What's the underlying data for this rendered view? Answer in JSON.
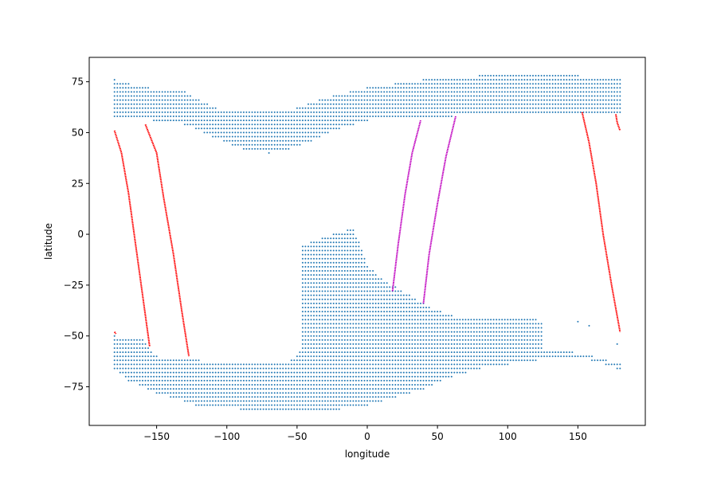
{
  "chart_data": {
    "type": "scatter",
    "title": "",
    "xlabel": "longitude",
    "ylabel": "latitude",
    "xlim": [
      -198,
      198
    ],
    "ylim": [
      -94,
      87
    ],
    "xticks": [
      -150,
      -100,
      -50,
      0,
      50,
      100,
      150
    ],
    "yticks": [
      -75,
      -50,
      -25,
      0,
      25,
      50,
      75
    ],
    "grid": false,
    "legend": "none",
    "colors": {
      "grid_points": "#1f77b4",
      "track_red": "#ff0000",
      "track_magenta": "#bf00bf"
    },
    "grid_regions": [
      {
        "description_value": "north",
        "lon_range": [
          -180,
          180
        ],
        "lat_spacing": 2,
        "lon_spacing": 2,
        "top": [
          [
            -180,
            76
          ],
          [
            -170,
            74
          ],
          [
            -155,
            72
          ],
          [
            -130,
            70
          ],
          [
            -120,
            66
          ],
          [
            -105,
            61
          ],
          [
            -90,
            60
          ],
          [
            -50,
            62
          ],
          [
            -35,
            66
          ],
          [
            -20,
            69
          ],
          [
            -5,
            71
          ],
          [
            0,
            72
          ],
          [
            20,
            74
          ],
          [
            40,
            76
          ],
          [
            80,
            78
          ],
          [
            150,
            78
          ],
          [
            155,
            76
          ],
          [
            180,
            76
          ]
        ],
        "bottom": [
          [
            -180,
            57
          ],
          [
            -155,
            57
          ],
          [
            -150,
            55
          ],
          [
            -130,
            54
          ],
          [
            -120,
            51
          ],
          [
            -100,
            45
          ],
          [
            -85,
            41
          ],
          [
            -70,
            40
          ],
          [
            -55,
            42
          ],
          [
            -40,
            46
          ],
          [
            -20,
            52
          ],
          [
            0,
            56
          ],
          [
            20,
            58
          ],
          [
            60,
            58
          ],
          [
            100,
            59
          ],
          [
            150,
            59
          ],
          [
            180,
            59
          ]
        ]
      },
      {
        "description_value": "south",
        "lon_range": [
          -180,
          180
        ],
        "lat_spacing": 2,
        "lon_spacing": 2,
        "top": [
          [
            -180,
            -50
          ],
          [
            -160,
            -52
          ],
          [
            -150,
            -60
          ],
          [
            -140,
            -62
          ],
          [
            -120,
            -62
          ],
          [
            -110,
            -64
          ],
          [
            -90,
            -64
          ],
          [
            -55,
            -62
          ],
          [
            -48,
            -58
          ],
          [
            -47,
            -50
          ],
          [
            -50,
            -35
          ],
          [
            -60,
            -28
          ],
          [
            -75,
            -21
          ],
          [
            -85,
            -13
          ],
          [
            -70,
            -10
          ],
          [
            -40,
            -4
          ],
          [
            -20,
            1
          ],
          [
            -10,
            3
          ],
          [
            -5,
            -5
          ],
          [
            0,
            -15
          ],
          [
            10,
            -22
          ],
          [
            30,
            -30
          ],
          [
            45,
            -36
          ],
          [
            60,
            -40
          ],
          [
            120,
            -42
          ],
          [
            125,
            -44
          ],
          [
            120,
            -50
          ],
          [
            110,
            -56
          ],
          [
            140,
            -57
          ],
          [
            160,
            -60
          ],
          [
            170,
            -62
          ],
          [
            180,
            -64
          ]
        ],
        "bottom": [
          [
            -180,
            -66
          ],
          [
            -170,
            -72
          ],
          [
            -150,
            -78
          ],
          [
            -130,
            -82
          ],
          [
            -120,
            -85
          ],
          [
            -90,
            -86
          ],
          [
            -70,
            -87
          ],
          [
            -40,
            -87
          ],
          [
            -20,
            -86
          ],
          [
            0,
            -84
          ],
          [
            20,
            -80
          ],
          [
            40,
            -76
          ],
          [
            60,
            -70
          ],
          [
            80,
            -66
          ],
          [
            100,
            -64
          ],
          [
            130,
            -61
          ],
          [
            160,
            -62
          ],
          [
            180,
            -66
          ]
        ]
      }
    ],
    "tracks": [
      {
        "color": "red",
        "x": [
          -180,
          -175,
          -170,
          -165,
          -160,
          -155
        ],
        "y": [
          51,
          40,
          20,
          -5,
          -30,
          -55
        ]
      },
      {
        "color": "red",
        "x": [
          -158,
          -150,
          -145,
          -138,
          -132,
          -127
        ],
        "y": [
          54,
          40,
          18,
          -10,
          -38,
          -60
        ]
      },
      {
        "color": "magenta",
        "x": [
          18,
          22,
          27,
          32,
          38
        ],
        "y": [
          -28,
          -5,
          20,
          40,
          56
        ]
      },
      {
        "color": "magenta",
        "x": [
          40,
          44,
          50,
          56,
          63
        ],
        "y": [
          -34,
          -10,
          15,
          38,
          58
        ]
      },
      {
        "color": "red",
        "x": [
          153,
          158,
          163,
          168,
          174,
          180
        ],
        "y": [
          60,
          45,
          25,
          0,
          -25,
          -48
        ]
      },
      {
        "color": "red",
        "x": [
          177,
          178,
          180
        ],
        "y": [
          59,
          55,
          51
        ]
      },
      {
        "color": "red",
        "x": [
          -180,
          -179
        ],
        "y": [
          -48,
          -49
        ]
      }
    ],
    "stray_points": [
      {
        "x": 150,
        "y": -43
      },
      {
        "x": 158,
        "y": -45
      },
      {
        "x": 178,
        "y": -54
      },
      {
        "x": 178,
        "y": -66
      }
    ]
  }
}
